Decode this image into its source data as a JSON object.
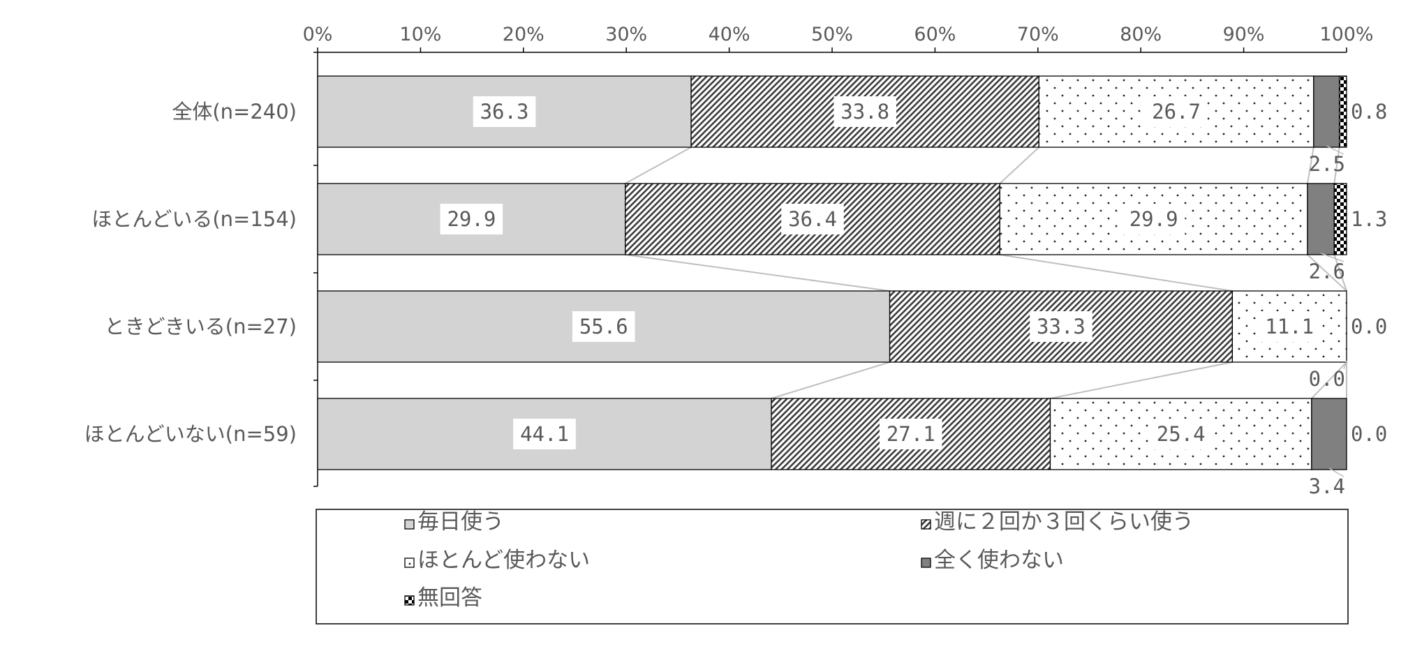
{
  "chart_data": {
    "type": "bar",
    "orientation": "horizontal",
    "stacked": "percent",
    "title": "",
    "xlabel": "",
    "ylabel": "",
    "xlim": [
      0,
      100
    ],
    "x_ticks": [
      "0%",
      "10%",
      "20%",
      "30%",
      "40%",
      "50%",
      "60%",
      "70%",
      "80%",
      "90%",
      "100%"
    ],
    "categories": [
      "全体(n=240)",
      "ほとんどいる(n=154)",
      "ときどきいる(n=27)",
      "ほとんどいない(n=59)"
    ],
    "series": [
      {
        "name": "毎日使う",
        "values": [
          36.3,
          29.9,
          55.6,
          44.1
        ],
        "pattern": "solid-light-gray",
        "color": "#d3d3d3"
      },
      {
        "name": "週に２回か３回くらい使う",
        "values": [
          33.8,
          36.4,
          33.3,
          27.1
        ],
        "pattern": "diagonal-hatch",
        "color": "#404040"
      },
      {
        "name": "ほとんど使わない",
        "values": [
          26.7,
          29.9,
          11.1,
          25.4
        ],
        "pattern": "dots",
        "color": "#ffffff"
      },
      {
        "name": "全く使わない",
        "values": [
          2.5,
          2.6,
          0.0,
          3.4
        ],
        "pattern": "solid-dark-gray",
        "color": "#808080"
      },
      {
        "name": "無回答",
        "values": [
          0.8,
          1.3,
          0.0,
          0.0
        ],
        "pattern": "checker",
        "color": "#000000"
      }
    ],
    "data_labels": [
      [
        "36.3",
        "33.8",
        "26.7",
        "2.5",
        "0.8"
      ],
      [
        "29.9",
        "36.4",
        "29.9",
        "2.6",
        "1.3"
      ],
      [
        "55.6",
        "33.3",
        "11.1",
        "0.0",
        "0.0"
      ],
      [
        "44.1",
        "27.1",
        "25.4",
        "3.4",
        "0.0"
      ]
    ],
    "series_lines": true,
    "grid": false,
    "legend_position": "bottom"
  }
}
